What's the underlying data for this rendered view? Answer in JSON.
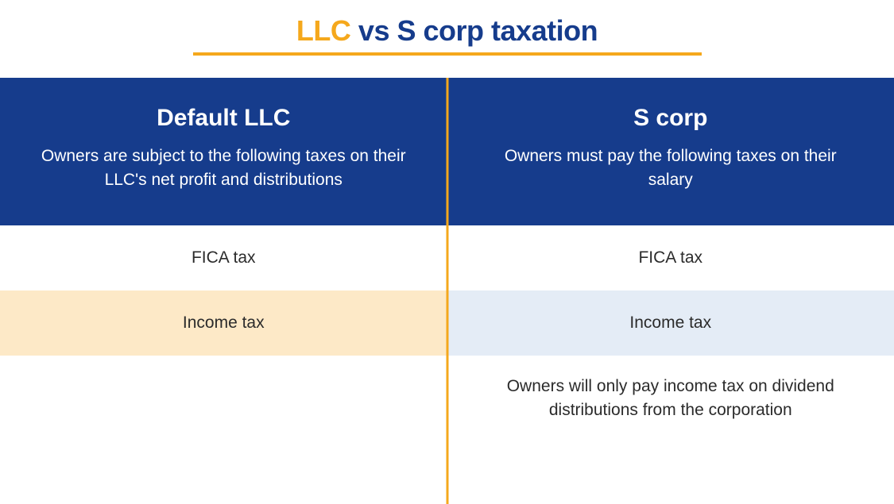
{
  "colors": {
    "gold": "#f5a81c",
    "navy": "#163c8c",
    "header_bg": "#163c8c",
    "divider": "#f5a81c",
    "llc_highlight_bg": "#fde9c7",
    "scorp_highlight_bg": "#e4ecf6",
    "white": "#ffffff",
    "text": "#2b2b2b"
  },
  "title": {
    "llc": "LLC",
    "vs": "vs",
    "scorp": "S corp",
    "taxation": "taxation",
    "fontsize": 36
  },
  "left": {
    "heading": "Default LLC",
    "subheading": "Owners are subject to the following taxes on their LLC's net profit and distributions",
    "rows": [
      {
        "label": "FICA tax",
        "highlight": false
      },
      {
        "label": "Income tax",
        "highlight": true
      }
    ]
  },
  "right": {
    "heading": "S corp",
    "subheading": "Owners must pay the following taxes on their salary",
    "rows": [
      {
        "label": "FICA tax",
        "highlight": false
      },
      {
        "label": "Income tax",
        "highlight": true
      }
    ],
    "note": "Owners will only pay income tax on dividend distributions from the corporation"
  }
}
